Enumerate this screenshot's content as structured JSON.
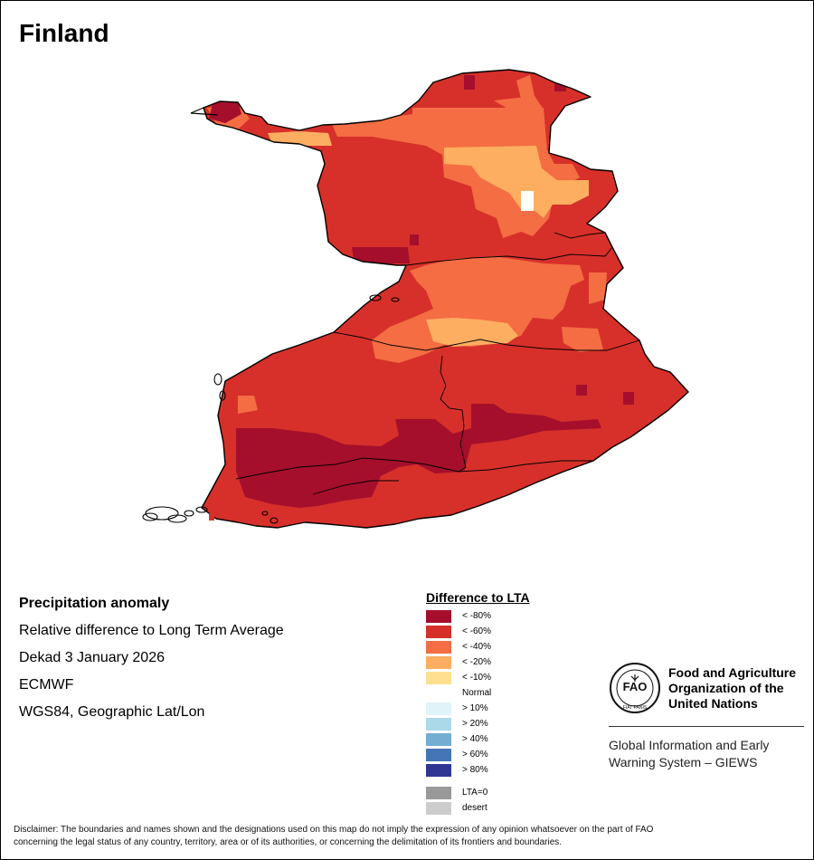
{
  "map": {
    "country": "Finland"
  },
  "info": {
    "title": "Precipitation anomaly",
    "subtitle": "Relative difference to Long Term Average",
    "period": "Dekad 3 January 2026",
    "model": "ECMWF",
    "projection": "WGS84, Geographic Lat/Lon"
  },
  "legend": {
    "title": "Difference to LTA",
    "items": [
      {
        "label": "< -80%",
        "color": "#a50f2c"
      },
      {
        "label": "< -60%",
        "color": "#d7302a"
      },
      {
        "label": "< -40%",
        "color": "#f46d43"
      },
      {
        "label": "< -20%",
        "color": "#fdae61"
      },
      {
        "label": "< -10%",
        "color": "#fee090"
      },
      {
        "label": "Normal",
        "color": "#ffffff"
      },
      {
        "label": "> 10%",
        "color": "#e0f3f8"
      },
      {
        "label": "> 20%",
        "color": "#abd9e9"
      },
      {
        "label": "> 40%",
        "color": "#74add1"
      },
      {
        "label": "> 60%",
        "color": "#4575b4"
      },
      {
        "label": "> 80%",
        "color": "#313695"
      }
    ],
    "extra": [
      {
        "label": "LTA=0",
        "color": "#999999"
      },
      {
        "label": "desert",
        "color": "#cccccc"
      }
    ]
  },
  "org": {
    "logo_text": "FAO",
    "logo_motto": "FIAT PANIS",
    "name_lines": [
      "Food and Agriculture",
      "Organization of the",
      "United Nations"
    ],
    "program_lines": [
      "Global Information and Early",
      "Warning System – GIEWS"
    ]
  },
  "disclaimer": {
    "line1": "Disclaimer: The boundaries and names shown and the designations used on this map do not imply the expression of any opinion whatsoever on the part of FAO",
    "line2": "concerning the legal status of any country, territory, area or of its authorities, or concerning the delimitation of its frontiers and boundaries."
  }
}
